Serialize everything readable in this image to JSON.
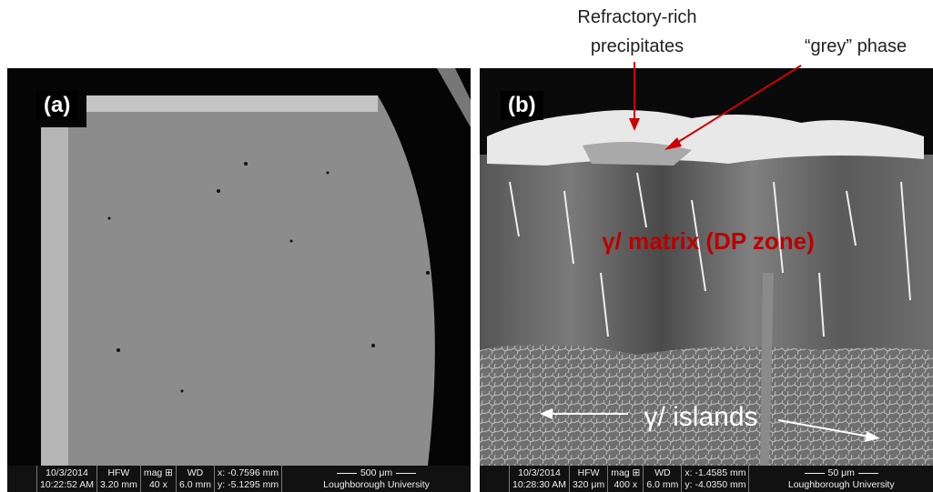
{
  "panels": [
    {
      "label": "(a)",
      "info": {
        "date": "10/3/2014",
        "time": "10:22:52 AM",
        "hfw_label": "HFW",
        "hfw": "3.20 mm",
        "mag_label": "mag ⊞",
        "mag": "40 x",
        "wd_label": "WD",
        "wd": "6.0 mm",
        "x": "x: -0.7596 mm",
        "y": "y: -5.1295 mm",
        "scale": "500 μm",
        "institution": "Loughborough University"
      }
    },
    {
      "label": "(b)",
      "info": {
        "date": "10/3/2014",
        "time": "10:28:30 AM",
        "hfw_label": "HFW",
        "hfw": "320 μm",
        "mag_label": "mag ⊞",
        "mag": "400 x",
        "wd_label": "WD",
        "wd": "6.0 mm",
        "x": "x: -1.4585 mm",
        "y": "y: -4.0350 mm",
        "scale": "50 μm",
        "institution": "Loughborough University"
      }
    }
  ],
  "annotations": {
    "refractory_line1": "Refractory-rich",
    "refractory_line2": "precipitates",
    "grey_phase": "“grey” phase",
    "matrix": "γ/ matrix (DP zone)",
    "islands": "γ/ islands"
  }
}
